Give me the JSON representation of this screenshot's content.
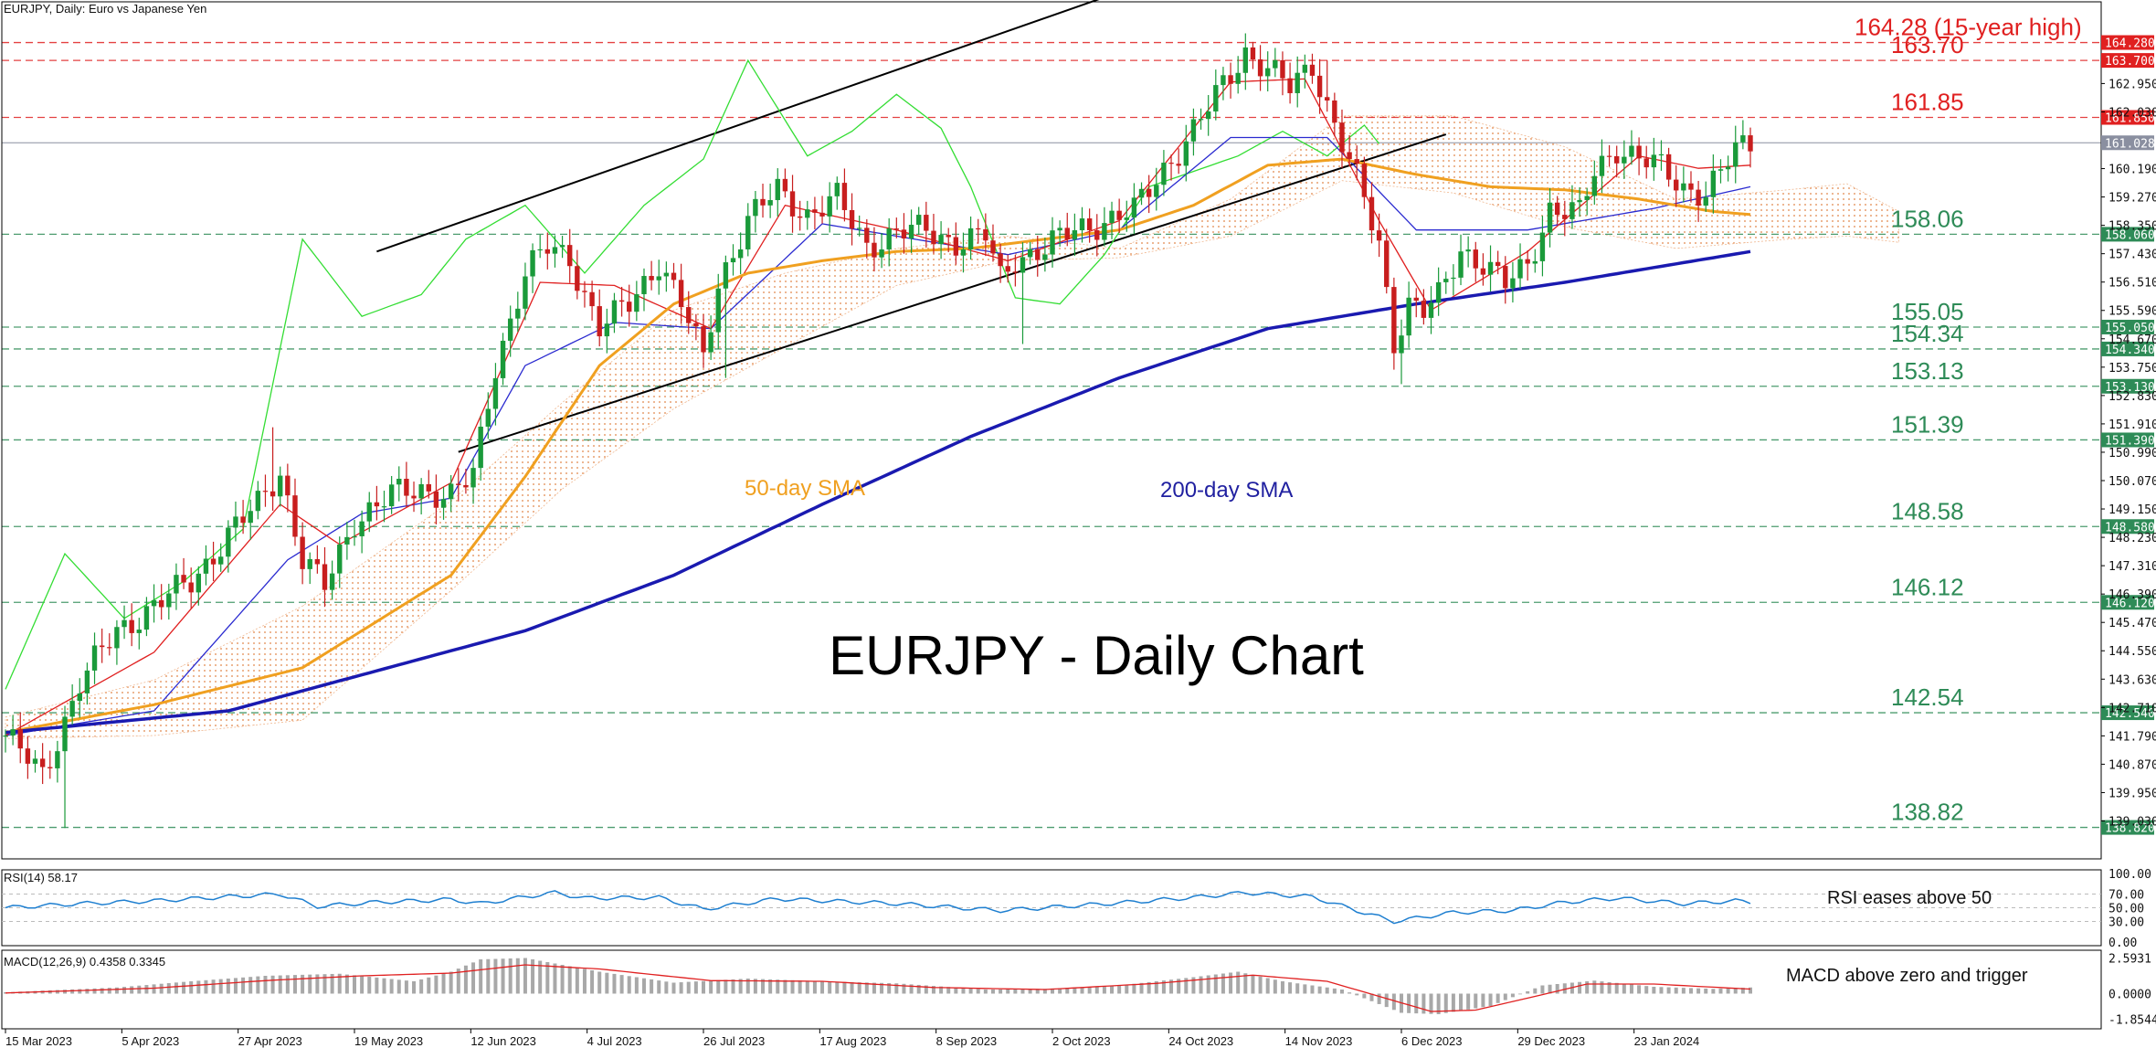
{
  "chart_data": {
    "type": "candlestick",
    "title": "EURJPY - Daily Chart",
    "symbol_label": "EURJPY, Daily:  Euro vs Japanese Yen",
    "x_tick_labels": [
      "15 Mar 2023",
      "5 Apr 2023",
      "27 Apr 2023",
      "19 May 2023",
      "12 Jun 2023",
      "4 Jul 2023",
      "26 Jul 2023",
      "17 Aug 2023",
      "8 Sep 2023",
      "2 Oct 2023",
      "24 Oct 2023",
      "14 Nov 2023",
      "6 Dec 2023",
      "29 Dec 2023",
      "23 Jan 2024"
    ],
    "price_axis": {
      "ylim": [
        137.8,
        165.6
      ],
      "tick_labels": [
        "164.280",
        "163.700",
        "162.950",
        "162.030",
        "161.850",
        "161.028",
        "160.190",
        "159.270",
        "158.350",
        "158.060",
        "157.430",
        "156.510",
        "155.590",
        "155.050",
        "154.670",
        "154.340",
        "153.750",
        "153.130",
        "152.830",
        "151.910",
        "151.390",
        "150.990",
        "150.070",
        "149.150",
        "148.580",
        "148.230",
        "147.310",
        "146.390",
        "146.120",
        "145.470",
        "144.550",
        "143.630",
        "142.710",
        "142.540",
        "141.790",
        "140.870",
        "139.950",
        "139.030",
        "138.820"
      ]
    },
    "levels": [
      {
        "value": 164.28,
        "label": "164.28 (15-year high)",
        "axis_label": "164.280",
        "color": "#e02020"
      },
      {
        "value": 163.7,
        "label": "163.70",
        "axis_label": "163.700",
        "color": "#e02020"
      },
      {
        "value": 161.85,
        "label": "161.85",
        "axis_label": "161.850",
        "color": "#e02020"
      },
      {
        "value": 158.06,
        "label": "158.06",
        "axis_label": "158.060",
        "color": "#2e8b57"
      },
      {
        "value": 155.05,
        "label": "155.05",
        "axis_label": "155.050",
        "color": "#2e8b57"
      },
      {
        "value": 154.34,
        "label": "154.34",
        "axis_label": "154.340",
        "color": "#2e8b57"
      },
      {
        "value": 153.13,
        "label": "153.13",
        "axis_label": "153.130",
        "color": "#2e8b57"
      },
      {
        "value": 151.39,
        "label": "151.39",
        "axis_label": "151.390",
        "color": "#2e8b57"
      },
      {
        "value": 148.58,
        "label": "148.58",
        "axis_label": "148.580",
        "color": "#2e8b57"
      },
      {
        "value": 146.12,
        "label": "146.12",
        "axis_label": "146.120",
        "color": "#2e8b57"
      },
      {
        "value": 142.54,
        "label": "142.54",
        "axis_label": "142.540",
        "color": "#2e8b57"
      },
      {
        "value": 138.82,
        "label": "138.82",
        "axis_label": "138.820",
        "color": "#2e8b57"
      }
    ],
    "current_price": {
      "value": 161.028,
      "label": "161.028"
    },
    "close_anchors": [
      [
        0,
        141.8
      ],
      [
        5,
        140.5
      ],
      [
        10,
        143.5
      ],
      [
        15,
        145.2
      ],
      [
        20,
        146.0
      ],
      [
        25,
        146.8
      ],
      [
        30,
        148.3
      ],
      [
        34,
        149.3
      ],
      [
        37,
        150.4
      ],
      [
        40,
        147.5
      ],
      [
        43,
        146.6
      ],
      [
        47,
        148.8
      ],
      [
        52,
        149.6
      ],
      [
        56,
        149.8
      ],
      [
        60,
        149.6
      ],
      [
        63,
        150.2
      ],
      [
        66,
        153.8
      ],
      [
        70,
        156.8
      ],
      [
        73,
        157.6
      ],
      [
        76,
        157.3
      ],
      [
        80,
        155.0
      ],
      [
        84,
        155.8
      ],
      [
        88,
        157.2
      ],
      [
        91,
        155.8
      ],
      [
        94,
        154.0
      ],
      [
        96,
        156.5
      ],
      [
        100,
        158.5
      ],
      [
        104,
        159.5
      ],
      [
        108,
        158.7
      ],
      [
        112,
        159.2
      ],
      [
        116,
        157.7
      ],
      [
        120,
        158.1
      ],
      [
        124,
        158.2
      ],
      [
        128,
        157.8
      ],
      [
        132,
        158.0
      ],
      [
        134,
        156.6
      ],
      [
        136,
        157.3
      ],
      [
        140,
        157.6
      ],
      [
        144,
        158.2
      ],
      [
        148,
        158.5
      ],
      [
        152,
        158.8
      ],
      [
        156,
        160.2
      ],
      [
        160,
        161.4
      ],
      [
        164,
        162.9
      ],
      [
        167,
        164.0
      ],
      [
        170,
        163.4
      ],
      [
        173,
        162.8
      ],
      [
        176,
        163.6
      ],
      [
        179,
        161.6
      ],
      [
        182,
        159.8
      ],
      [
        185,
        157.8
      ],
      [
        187,
        154.6
      ],
      [
        189,
        155.8
      ],
      [
        191,
        155.5
      ],
      [
        193,
        156.0
      ],
      [
        196,
        157.6
      ],
      [
        199,
        157.1
      ],
      [
        202,
        156.4
      ],
      [
        205,
        157.1
      ],
      [
        208,
        158.9
      ],
      [
        212,
        158.7
      ],
      [
        214,
        160.1
      ],
      [
        217,
        160.9
      ],
      [
        220,
        160.5
      ],
      [
        223,
        160.2
      ],
      [
        226,
        159.6
      ],
      [
        229,
        159.4
      ],
      [
        231,
        160.0
      ],
      [
        233,
        160.8
      ],
      [
        235,
        161.0
      ]
    ],
    "spike_lows": [
      [
        8,
        138.8
      ],
      [
        97,
        153.4
      ],
      [
        137,
        154.5
      ],
      [
        188,
        153.2
      ]
    ],
    "spike_highs": [
      [
        36,
        151.8
      ],
      [
        168,
        164.3
      ],
      [
        178,
        163.7
      ]
    ],
    "sma50_anchors": [
      [
        0,
        141.9
      ],
      [
        20,
        142.8
      ],
      [
        40,
        144.0
      ],
      [
        60,
        147.0
      ],
      [
        70,
        150.2
      ],
      [
        80,
        153.8
      ],
      [
        90,
        155.8
      ],
      [
        100,
        156.8
      ],
      [
        110,
        157.2
      ],
      [
        120,
        157.5
      ],
      [
        130,
        157.6
      ],
      [
        140,
        157.9
      ],
      [
        150,
        158.2
      ],
      [
        160,
        159.0
      ],
      [
        170,
        160.3
      ],
      [
        180,
        160.5
      ],
      [
        190,
        160.0
      ],
      [
        200,
        159.6
      ],
      [
        210,
        159.5
      ],
      [
        220,
        159.2
      ],
      [
        230,
        158.8
      ],
      [
        235,
        158.7
      ]
    ],
    "sma200_anchors": [
      [
        0,
        141.9
      ],
      [
        30,
        142.6
      ],
      [
        50,
        143.9
      ],
      [
        70,
        145.2
      ],
      [
        90,
        147.0
      ],
      [
        110,
        149.3
      ],
      [
        130,
        151.5
      ],
      [
        150,
        153.4
      ],
      [
        170,
        155.0
      ],
      [
        190,
        155.8
      ],
      [
        210,
        156.5
      ],
      [
        225,
        157.1
      ],
      [
        235,
        157.5
      ]
    ],
    "tenkan_anchors": [
      [
        0,
        141.8
      ],
      [
        20,
        144.5
      ],
      [
        37,
        149.3
      ],
      [
        45,
        148.0
      ],
      [
        60,
        150.0
      ],
      [
        72,
        156.5
      ],
      [
        82,
        156.4
      ],
      [
        95,
        155.0
      ],
      [
        105,
        159.0
      ],
      [
        120,
        158.2
      ],
      [
        135,
        157.2
      ],
      [
        150,
        158.5
      ],
      [
        165,
        163.0
      ],
      [
        175,
        163.1
      ],
      [
        185,
        158.5
      ],
      [
        192,
        155.6
      ],
      [
        205,
        157.5
      ],
      [
        220,
        160.6
      ],
      [
        228,
        160.2
      ],
      [
        235,
        160.3
      ]
    ],
    "kijun_anchors": [
      [
        0,
        141.8
      ],
      [
        20,
        142.6
      ],
      [
        38,
        147.5
      ],
      [
        48,
        149.0
      ],
      [
        60,
        149.5
      ],
      [
        70,
        153.8
      ],
      [
        82,
        155.2
      ],
      [
        95,
        155.0
      ],
      [
        110,
        158.4
      ],
      [
        135,
        157.4
      ],
      [
        150,
        158.2
      ],
      [
        165,
        161.2
      ],
      [
        178,
        161.2
      ],
      [
        190,
        158.2
      ],
      [
        205,
        158.2
      ],
      [
        222,
        158.9
      ],
      [
        235,
        159.6
      ]
    ],
    "chikou_anchors": [
      [
        0,
        143.3
      ],
      [
        8,
        147.7
      ],
      [
        16,
        145.6
      ],
      [
        24,
        146.8
      ],
      [
        32,
        148.5
      ],
      [
        40,
        157.9
      ],
      [
        48,
        155.4
      ],
      [
        56,
        156.1
      ],
      [
        62,
        157.9
      ],
      [
        70,
        159.0
      ],
      [
        78,
        156.8
      ],
      [
        86,
        159.0
      ],
      [
        94,
        160.5
      ],
      [
        100,
        163.7
      ],
      [
        108,
        160.6
      ],
      [
        114,
        161.4
      ],
      [
        120,
        162.6
      ],
      [
        126,
        161.5
      ],
      [
        130,
        159.6
      ],
      [
        136,
        156.0
      ],
      [
        142,
        155.8
      ],
      [
        148,
        157.4
      ],
      [
        154,
        159.6
      ],
      [
        160,
        160.1
      ],
      [
        166,
        160.6
      ],
      [
        172,
        161.4
      ],
      [
        178,
        160.6
      ],
      [
        183,
        161.6
      ],
      [
        185,
        161.0
      ]
    ],
    "cloud_anchors": [
      [
        0,
        141.7,
        142.4
      ],
      [
        20,
        141.8,
        143.6
      ],
      [
        40,
        142.3,
        146.0
      ],
      [
        60,
        146.5,
        149.4
      ],
      [
        75,
        149.8,
        152.6
      ],
      [
        90,
        152.4,
        155.6
      ],
      [
        105,
        154.4,
        156.8
      ],
      [
        120,
        156.4,
        157.6
      ],
      [
        135,
        157.2,
        158.0
      ],
      [
        150,
        157.3,
        157.6
      ],
      [
        165,
        158.0,
        159.2
      ],
      [
        180,
        159.8,
        161.9
      ],
      [
        195,
        159.4,
        161.9
      ],
      [
        210,
        158.3,
        160.9
      ],
      [
        225,
        157.6,
        159.2
      ],
      [
        240,
        157.9,
        159.5
      ],
      [
        248,
        158.0,
        159.7
      ],
      [
        255,
        157.8,
        158.8
      ]
    ],
    "channel_upper": [
      [
        50,
        157.5
      ],
      [
        151,
        166.0
      ]
    ],
    "channel_lower": [
      [
        61,
        151.0
      ],
      [
        194,
        161.3
      ]
    ],
    "annotations": [
      {
        "text": "50-day SMA",
        "color": "#f0a020"
      },
      {
        "text": "200-day SMA",
        "color": "#2020a0"
      }
    ],
    "rsi": {
      "label": "RSI(14) 58.17",
      "ylim": [
        0,
        100
      ],
      "tick_labels": [
        "100.00",
        "70.00",
        "50.00",
        "30.00",
        "0.00"
      ],
      "note": "RSI eases above 50",
      "anchors": [
        [
          0,
          50
        ],
        [
          10,
          56
        ],
        [
          20,
          60
        ],
        [
          30,
          66
        ],
        [
          37,
          70
        ],
        [
          42,
          52
        ],
        [
          50,
          58
        ],
        [
          60,
          62
        ],
        [
          64,
          56
        ],
        [
          70,
          66
        ],
        [
          74,
          72
        ],
        [
          78,
          64
        ],
        [
          88,
          65
        ],
        [
          94,
          48
        ],
        [
          104,
          63
        ],
        [
          120,
          56
        ],
        [
          134,
          46
        ],
        [
          150,
          57
        ],
        [
          160,
          65
        ],
        [
          167,
          72
        ],
        [
          176,
          66
        ],
        [
          182,
          46
        ],
        [
          187,
          30
        ],
        [
          195,
          43
        ],
        [
          203,
          46
        ],
        [
          210,
          58
        ],
        [
          217,
          64
        ],
        [
          226,
          56
        ],
        [
          233,
          60
        ],
        [
          235,
          58.17
        ]
      ]
    },
    "macd": {
      "label": "MACD(12,26,9) 0.4358 0.3345",
      "ylim": [
        -2.3,
        2.9
      ],
      "tick_labels": [
        "2.5931",
        "0.0000",
        "-1.8544"
      ],
      "note": "MACD above zero and trigger",
      "hist_anchors": [
        [
          0,
          0.1
        ],
        [
          15,
          0.45
        ],
        [
          25,
          0.9
        ],
        [
          35,
          1.3
        ],
        [
          45,
          1.45
        ],
        [
          55,
          0.9
        ],
        [
          60,
          1.6
        ],
        [
          64,
          2.5
        ],
        [
          70,
          2.6
        ],
        [
          80,
          1.6
        ],
        [
          90,
          0.8
        ],
        [
          100,
          1.1
        ],
        [
          110,
          0.9
        ],
        [
          120,
          0.75
        ],
        [
          132,
          0.3
        ],
        [
          140,
          0.35
        ],
        [
          150,
          0.6
        ],
        [
          160,
          1.2
        ],
        [
          166,
          1.6
        ],
        [
          172,
          0.9
        ],
        [
          180,
          0.3
        ],
        [
          188,
          -1.4
        ],
        [
          193,
          -1.5
        ],
        [
          200,
          -0.9
        ],
        [
          207,
          0.6
        ],
        [
          214,
          0.95
        ],
        [
          222,
          0.5
        ],
        [
          230,
          0.35
        ],
        [
          235,
          0.45
        ]
      ],
      "signal_anchors": [
        [
          0,
          0.05
        ],
        [
          20,
          0.4
        ],
        [
          35,
          0.95
        ],
        [
          48,
          1.3
        ],
        [
          60,
          1.5
        ],
        [
          70,
          2.1
        ],
        [
          80,
          1.8
        ],
        [
          95,
          0.95
        ],
        [
          110,
          0.9
        ],
        [
          125,
          0.45
        ],
        [
          140,
          0.3
        ],
        [
          155,
          0.75
        ],
        [
          168,
          1.35
        ],
        [
          178,
          0.9
        ],
        [
          185,
          -0.2
        ],
        [
          192,
          -1.3
        ],
        [
          198,
          -1.2
        ],
        [
          206,
          -0.2
        ],
        [
          213,
          0.7
        ],
        [
          222,
          0.7
        ],
        [
          235,
          0.33
        ]
      ]
    }
  }
}
